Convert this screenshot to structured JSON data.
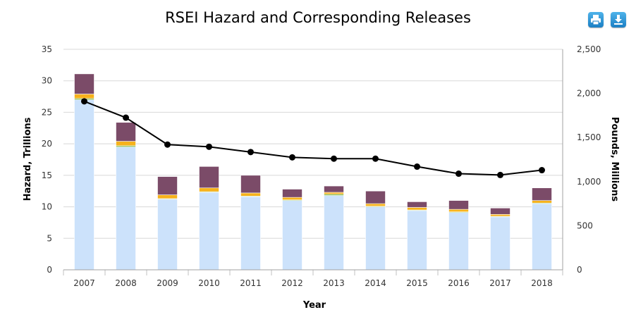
{
  "title": "RSEI Hazard and Corresponding Releases",
  "toolbar": {
    "print_icon": "printer-icon",
    "download_icon": "download-icon"
  },
  "colors": {
    "base": "#cce2fb",
    "orange": "#f6b21b",
    "green": "#7cb342",
    "purple": "#7b4b68",
    "line": "#000000",
    "grid": "#d8d8d8"
  },
  "chart_data": {
    "type": "bar",
    "title": "RSEI Hazard and Corresponding Releases",
    "xlabel": "Year",
    "ylabel": "Hazard, Trillions",
    "y2label": "Pounds, Millions",
    "ylim": [
      0,
      35
    ],
    "y2lim": [
      0,
      2500
    ],
    "yticks": [
      "0",
      "5",
      "10",
      "15",
      "20",
      "25",
      "30",
      "35"
    ],
    "y2ticks": [
      "0",
      "500",
      "1,000",
      "1,500",
      "2,000",
      "2,500"
    ],
    "grid": true,
    "categories": [
      "2007",
      "2008",
      "2009",
      "2010",
      "2011",
      "2012",
      "2013",
      "2014",
      "2015",
      "2016",
      "2017",
      "2018"
    ],
    "stacked_series": [
      {
        "values": [
          27.0,
          19.5,
          11.2,
          12.3,
          11.6,
          11.0,
          11.8,
          10.0,
          9.4,
          9.1,
          8.4,
          10.5
        ]
      },
      {
        "values": [
          0.2,
          0.2,
          0.1,
          0.1,
          0.1,
          0.1,
          0.2,
          0.1,
          0.1,
          0.1,
          0.1,
          0.1
        ]
      },
      {
        "values": [
          0.7,
          0.7,
          0.6,
          0.6,
          0.5,
          0.4,
          0.3,
          0.4,
          0.4,
          0.4,
          0.3,
          0.4
        ]
      },
      {
        "values": [
          3.2,
          3.0,
          2.9,
          3.4,
          2.8,
          1.3,
          1.0,
          2.0,
          0.9,
          1.4,
          1.0,
          2.0
        ]
      }
    ],
    "line_series": {
      "axis": "secondary",
      "values": [
        1910,
        1725,
        1420,
        1395,
        1335,
        1275,
        1260,
        1260,
        1170,
        1090,
        1075,
        1130
      ]
    }
  }
}
